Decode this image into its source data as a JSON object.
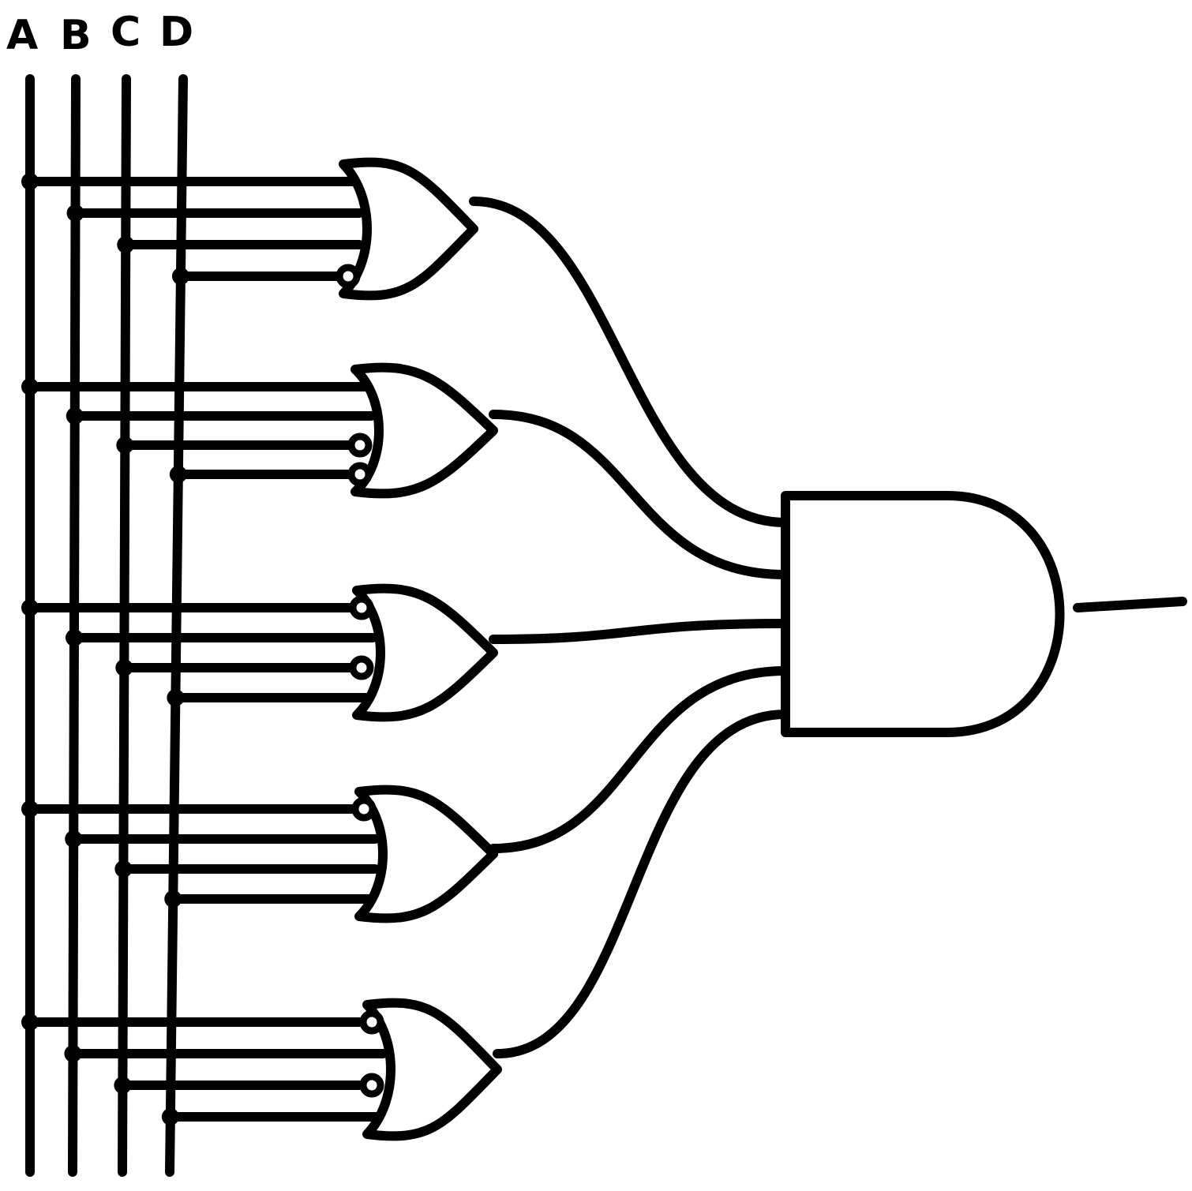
{
  "inputs": {
    "labels": [
      "A",
      "B",
      "C",
      "D"
    ]
  },
  "or_gates": [
    {
      "inverted_inputs": [
        false,
        false,
        false,
        true
      ]
    },
    {
      "inverted_inputs": [
        false,
        false,
        true,
        true
      ]
    },
    {
      "inverted_inputs": [
        true,
        false,
        true,
        false
      ]
    },
    {
      "inverted_inputs": [
        true,
        false,
        false,
        false
      ]
    },
    {
      "inverted_inputs": [
        true,
        false,
        true,
        false
      ]
    }
  ],
  "and_gate": {
    "inputs": 5,
    "outputs": 1
  },
  "colors": {
    "ink": "#000000",
    "paper": "#ffffff"
  }
}
